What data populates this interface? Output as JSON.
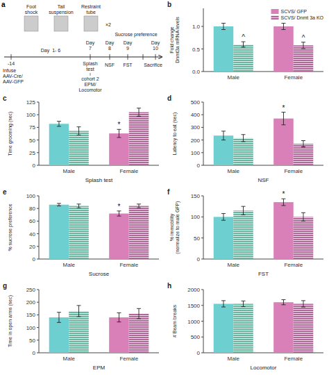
{
  "chart_data": [
    {
      "type": "timeline",
      "title": "a",
      "annotations": [
        "Foot\nshock",
        "Tail\nsuspension",
        "Restraint\ntube",
        "×2",
        "Sucrose preference",
        "Day  1- 6",
        "-14",
        "Infuse\nAAV-Cre/\nAAV-GFP",
        "Day\n7",
        "Splash\ntest",
        "cohort 2\nEPM/\nLocomotor",
        "Day\n8",
        "NSF",
        "Day\n9",
        "FST",
        "Day\n10",
        "Sacrifice"
      ]
    },
    {
      "type": "bar",
      "title": "b",
      "ylabel": "Fold change\nDnmt3a mRNA levels",
      "categories": [
        "Male",
        "Female"
      ],
      "series": [
        {
          "name": "SCVS/ GFP",
          "colors": [
            "#6dcfcf",
            "#d980b8"
          ],
          "values": [
            1.0,
            1.0
          ],
          "errors": [
            0.07,
            0.07
          ]
        },
        {
          "name": "SCVS/ Dnmt 3a KO",
          "colors": [
            "#6ab5a0",
            "#b06898"
          ],
          "values": [
            0.6,
            0.58
          ],
          "errors": [
            0.06,
            0.07
          ],
          "significance": [
            "^",
            "^"
          ]
        }
      ],
      "ylim": [
        0.0,
        1.4
      ],
      "yticks": [
        {
          "value": 0,
          "label": "0.0"
        },
        0.5,
        {
          "value": 1,
          "label": "1.0"
        }
      ],
      "legend": "upper right"
    },
    {
      "type": "bar",
      "title": "c",
      "ylabel": "Time grooming (sec)",
      "xlabel": "Splash test",
      "categories": [
        "Male",
        "Female"
      ],
      "series": [
        {
          "colors": [
            "#6dcfcf",
            "#d980b8"
          ],
          "values": [
            82,
            63
          ],
          "errors": [
            5,
            8
          ],
          "significance": [
            null,
            "*"
          ]
        },
        {
          "colors": [
            "#6ab5a0",
            "#b06898"
          ],
          "values": [
            68,
            105
          ],
          "errors": [
            8,
            8
          ]
        }
      ],
      "ylim": [
        0,
        125
      ],
      "yticks": [
        0,
        25,
        50,
        75,
        100,
        125
      ]
    },
    {
      "type": "bar",
      "title": "d",
      "ylabel": "Latency to eat (sec)",
      "xlabel": "NSF",
      "categories": [
        "Male",
        "Female"
      ],
      "series": [
        {
          "colors": [
            "#6dcfcf",
            "#d980b8"
          ],
          "values": [
            235,
            370
          ],
          "errors": [
            35,
            50
          ],
          "significance": [
            null,
            "*"
          ]
        },
        {
          "colors": [
            "#6ab5a0",
            "#b06898"
          ],
          "values": [
            215,
            170
          ],
          "errors": [
            28,
            25
          ]
        }
      ],
      "ylim": [
        0,
        500
      ],
      "yticks": [
        0,
        100,
        200,
        300,
        400,
        500
      ]
    },
    {
      "type": "bar",
      "title": "e",
      "ylabel": "% sucrose preference",
      "xlabel": "Sucrose",
      "categories": [
        "Male",
        "Female"
      ],
      "series": [
        {
          "colors": [
            "#6dcfcf",
            "#d980b8"
          ],
          "values": [
            86,
            72
          ],
          "errors": [
            2,
            4
          ],
          "significance": [
            null,
            "*"
          ]
        },
        {
          "colors": [
            "#6ab5a0",
            "#b06898"
          ],
          "values": [
            84,
            84
          ],
          "errors": [
            3,
            3
          ]
        }
      ],
      "ylim": [
        0,
        100
      ],
      "yticks": [
        0,
        20,
        40,
        60,
        80,
        100
      ]
    },
    {
      "type": "bar",
      "title": "f",
      "ylabel": "% immobility\n(normalize to male GFP)",
      "xlabel": "FST",
      "categories": [
        "Male",
        "Female"
      ],
      "series": [
        {
          "colors": [
            "#6dcfcf",
            "#d980b8"
          ],
          "values": [
            100,
            135
          ],
          "errors": [
            8,
            8
          ],
          "significance": [
            null,
            "*"
          ]
        },
        {
          "colors": [
            "#6ab5a0",
            "#b06898"
          ],
          "values": [
            115,
            100
          ],
          "errors": [
            10,
            10
          ]
        }
      ],
      "ylim": [
        0,
        150
      ],
      "yticks": [
        0,
        50,
        100,
        150
      ]
    },
    {
      "type": "bar",
      "title": "g",
      "ylabel": "Time in open arms (sec)",
      "xlabel": "EPM",
      "categories": [
        "Male",
        "Female"
      ],
      "series": [
        {
          "colors": [
            "#6dcfcf",
            "#d980b8"
          ],
          "values": [
            140,
            140
          ],
          "errors": [
            20,
            18
          ]
        },
        {
          "colors": [
            "#6ab5a0",
            "#b06898"
          ],
          "values": [
            165,
            155
          ],
          "errors": [
            22,
            20
          ]
        }
      ],
      "ylim": [
        0,
        250
      ],
      "yticks": [
        0,
        50,
        100,
        150,
        200,
        250
      ]
    },
    {
      "type": "bar",
      "title": "h",
      "ylabel": "# Beam breaks",
      "xlabel": "Locomotor",
      "categories": [
        "Male",
        "Female"
      ],
      "series": [
        {
          "colors": [
            "#6dcfcf",
            "#d980b8"
          ],
          "values": [
            1550,
            1600
          ],
          "errors": [
            100,
            80
          ]
        },
        {
          "colors": [
            "#6ab5a0",
            "#b06898"
          ],
          "values": [
            1550,
            1550
          ],
          "errors": [
            90,
            100
          ]
        }
      ],
      "ylim": [
        0,
        2000
      ],
      "yticks": [
        0,
        500,
        1000,
        1500,
        2000
      ]
    }
  ]
}
